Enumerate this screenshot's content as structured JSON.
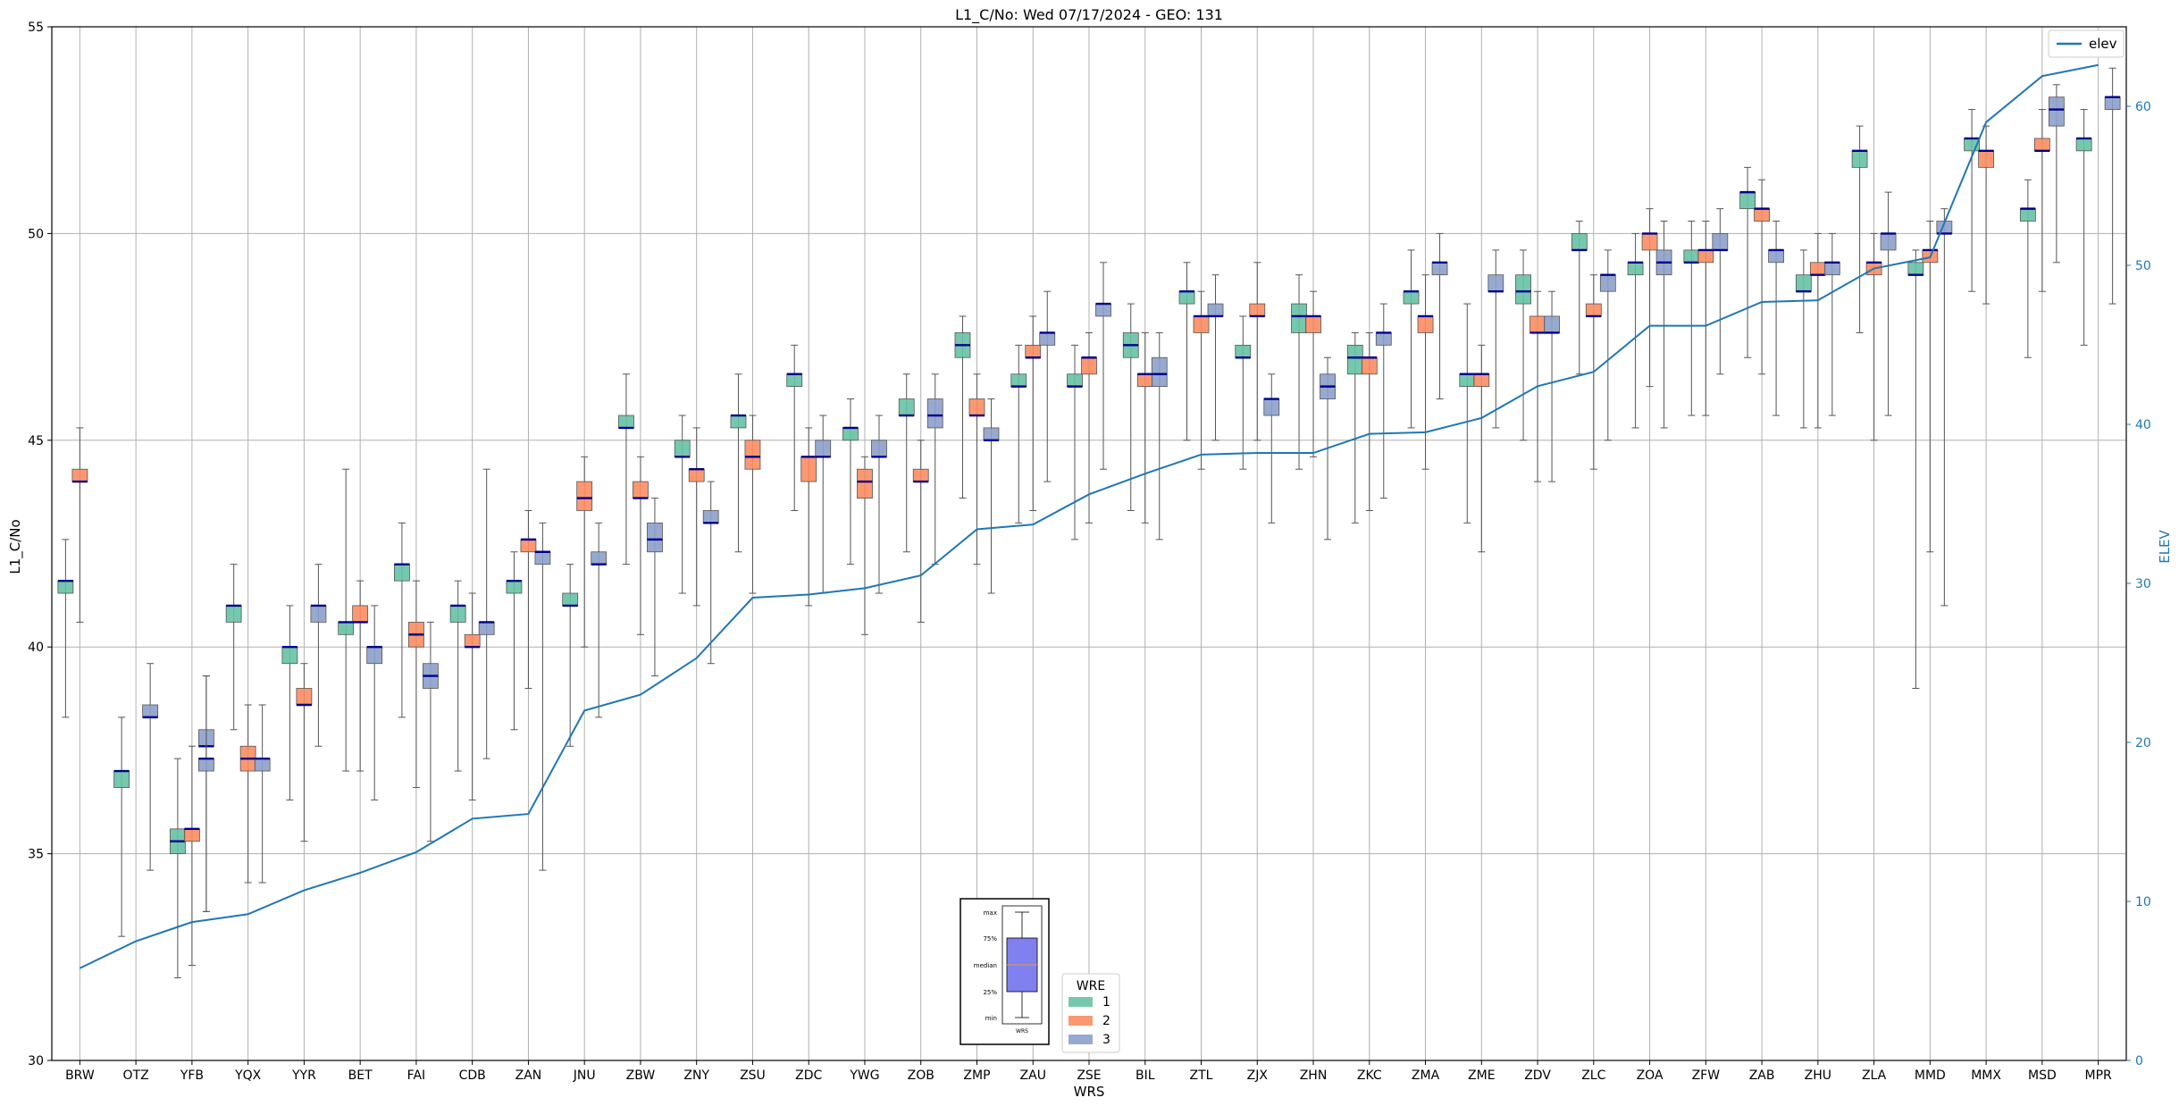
{
  "chart_data": {
    "type": "box",
    "title": "L1_C/No: Wed 07/17/2024 - GEO: 131",
    "xlabel": "WRS",
    "ylabel": "L1_C/No",
    "y2label": "ELEV",
    "ylim": [
      30,
      55
    ],
    "y2lim": [
      0,
      65
    ],
    "yticks": [
      30,
      35,
      40,
      45,
      50,
      55
    ],
    "y2ticks": [
      0,
      10,
      20,
      30,
      40,
      50,
      60
    ],
    "grid": true,
    "legend_title": "WRE",
    "legend_entries": [
      "1",
      "2",
      "3"
    ],
    "legend_placement": "bottom-center",
    "line_legend": "elev",
    "line_legend_placement": "top-right",
    "series_colors": {
      "1": "#66c2a5",
      "2": "#fc8d62",
      "3": "#8da0cb"
    },
    "line_color": "#1f77b4",
    "median_color": "#00008b",
    "inset_labels": [
      "max",
      "75%",
      "median",
      "25%",
      "min"
    ],
    "inset_xlabel": "WRS",
    "categories": [
      "BRW",
      "OTZ",
      "YFB",
      "YQX",
      "YYR",
      "BET",
      "FAI",
      "CDB",
      "ZAN",
      "JNU",
      "ZBW",
      "ZNY",
      "ZSU",
      "ZDC",
      "YWG",
      "ZOB",
      "ZMP",
      "ZAU",
      "ZSE",
      "BIL",
      "ZTL",
      "ZJX",
      "ZHN",
      "ZKC",
      "ZMA",
      "ZME",
      "ZDV",
      "ZLC",
      "ZOA",
      "ZFW",
      "ZAB",
      "ZHU",
      "ZLA",
      "MMD",
      "MMX",
      "MSD",
      "MPR"
    ],
    "elev": [
      5.8,
      7.5,
      8.7,
      9.2,
      10.7,
      11.8,
      13.1,
      15.2,
      15.5,
      22.0,
      23.0,
      25.3,
      29.1,
      29.3,
      29.7,
      30.5,
      33.4,
      33.7,
      35.6,
      36.9,
      38.1,
      38.2,
      38.2,
      39.4,
      39.5,
      40.4,
      42.4,
      43.3,
      46.2,
      46.2,
      47.7,
      47.8,
      49.8,
      50.5,
      59.0,
      61.9,
      62.6
    ],
    "boxes": [
      {
        "station": "BRW",
        "wre": "1",
        "min": 38.3,
        "q1": 41.3,
        "median": 41.6,
        "q3": 41.6,
        "max": 42.6
      },
      {
        "station": "BRW",
        "wre": "2",
        "min": 40.6,
        "q1": 44.0,
        "median": 44.0,
        "q3": 44.3,
        "max": 45.3
      },
      {
        "station": "OTZ",
        "wre": "3",
        "min": 34.6,
        "q1": 38.3,
        "median": 38.3,
        "q3": 38.6,
        "max": 39.6
      },
      {
        "station": "OTZ",
        "wre": "1",
        "min": 33.0,
        "q1": 36.6,
        "median": 37.0,
        "q3": 37.0,
        "max": 38.3
      },
      {
        "station": "YFB",
        "wre": "3",
        "min": 33.6,
        "q1": 37.6,
        "median": 37.6,
        "q3": 38.0,
        "max": 39.3
      },
      {
        "station": "YFB",
        "wre": "1",
        "min": 32.0,
        "q1": 35.0,
        "median": 35.3,
        "q3": 35.6,
        "max": 37.3
      },
      {
        "station": "YFB",
        "wre": "2",
        "min": 32.3,
        "q1": 35.3,
        "median": 35.6,
        "q3": 35.6,
        "max": 37.6
      },
      {
        "station": "YFB",
        "wre": "3",
        "min": 33.6,
        "q1": 37.0,
        "median": 37.3,
        "q3": 37.3,
        "max": 39.3
      },
      {
        "station": "YQX",
        "wre": "1",
        "min": 38.0,
        "q1": 40.6,
        "median": 41.0,
        "q3": 41.0,
        "max": 42.0
      },
      {
        "station": "YQX",
        "wre": "2",
        "min": 34.3,
        "q1": 37.0,
        "median": 37.3,
        "q3": 37.6,
        "max": 38.6
      },
      {
        "station": "YQX",
        "wre": "3",
        "min": 34.3,
        "q1": 37.0,
        "median": 37.3,
        "q3": 37.3,
        "max": 38.6
      },
      {
        "station": "YYR",
        "wre": "1",
        "min": 36.3,
        "q1": 39.6,
        "median": 40.0,
        "q3": 40.0,
        "max": 41.0
      },
      {
        "station": "YYR",
        "wre": "2",
        "min": 35.3,
        "q1": 38.6,
        "median": 38.6,
        "q3": 39.0,
        "max": 39.6
      },
      {
        "station": "YYR",
        "wre": "3",
        "min": 37.6,
        "q1": 40.6,
        "median": 41.0,
        "q3": 41.0,
        "max": 42.0
      },
      {
        "station": "BET",
        "wre": "1",
        "min": 37.0,
        "q1": 40.3,
        "median": 40.6,
        "q3": 40.6,
        "max": 44.3
      },
      {
        "station": "BET",
        "wre": "2",
        "min": 37.0,
        "q1": 40.6,
        "median": 40.6,
        "q3": 41.0,
        "max": 41.6
      },
      {
        "station": "BET",
        "wre": "3",
        "min": 36.3,
        "q1": 39.6,
        "median": 40.0,
        "q3": 40.0,
        "max": 41.0
      },
      {
        "station": "FAI",
        "wre": "1",
        "min": 38.3,
        "q1": 41.6,
        "median": 42.0,
        "q3": 42.0,
        "max": 43.0
      },
      {
        "station": "FAI",
        "wre": "2",
        "min": 36.6,
        "q1": 40.0,
        "median": 40.3,
        "q3": 40.6,
        "max": 41.6
      },
      {
        "station": "FAI",
        "wre": "3",
        "min": 35.3,
        "q1": 39.0,
        "median": 39.3,
        "q3": 39.6,
        "max": 40.6
      },
      {
        "station": "CDB",
        "wre": "1",
        "min": 37.0,
        "q1": 40.6,
        "median": 41.0,
        "q3": 41.0,
        "max": 41.6
      },
      {
        "station": "CDB",
        "wre": "2",
        "min": 36.3,
        "q1": 40.0,
        "median": 40.0,
        "q3": 40.3,
        "max": 41.3
      },
      {
        "station": "CDB",
        "wre": "3",
        "min": 37.3,
        "q1": 40.3,
        "median": 40.6,
        "q3": 40.6,
        "max": 44.3
      },
      {
        "station": "ZAN",
        "wre": "1",
        "min": 38.0,
        "q1": 41.3,
        "median": 41.6,
        "q3": 41.6,
        "max": 42.3
      },
      {
        "station": "ZAN",
        "wre": "2",
        "min": 39.0,
        "q1": 42.3,
        "median": 42.6,
        "q3": 42.6,
        "max": 43.3
      },
      {
        "station": "ZAN",
        "wre": "3",
        "min": 34.6,
        "q1": 42.0,
        "median": 42.3,
        "q3": 42.3,
        "max": 43.0
      },
      {
        "station": "JNU",
        "wre": "1",
        "min": 37.6,
        "q1": 41.0,
        "median": 41.0,
        "q3": 41.3,
        "max": 42.0
      },
      {
        "station": "JNU",
        "wre": "2",
        "min": 40.0,
        "q1": 43.3,
        "median": 43.6,
        "q3": 44.0,
        "max": 44.6
      },
      {
        "station": "JNU",
        "wre": "3",
        "min": 38.3,
        "q1": 42.0,
        "median": 42.0,
        "q3": 42.3,
        "max": 43.0
      },
      {
        "station": "ZBW",
        "wre": "1",
        "min": 42.0,
        "q1": 45.3,
        "median": 45.3,
        "q3": 45.6,
        "max": 46.6
      },
      {
        "station": "ZBW",
        "wre": "2",
        "min": 40.3,
        "q1": 43.6,
        "median": 43.6,
        "q3": 44.0,
        "max": 44.6
      },
      {
        "station": "ZBW",
        "wre": "3",
        "min": 39.3,
        "q1": 42.3,
        "median": 42.6,
        "q3": 43.0,
        "max": 43.6
      },
      {
        "station": "ZNY",
        "wre": "1",
        "min": 41.3,
        "q1": 44.6,
        "median": 44.6,
        "q3": 45.0,
        "max": 45.6
      },
      {
        "station": "ZNY",
        "wre": "2",
        "min": 41.0,
        "q1": 44.0,
        "median": 44.3,
        "q3": 44.3,
        "max": 45.3
      },
      {
        "station": "ZNY",
        "wre": "3",
        "min": 39.6,
        "q1": 43.0,
        "median": 43.0,
        "q3": 43.3,
        "max": 44.0
      },
      {
        "station": "ZSU",
        "wre": "1",
        "min": 42.3,
        "q1": 45.3,
        "median": 45.6,
        "q3": 45.6,
        "max": 46.6
      },
      {
        "station": "ZSU",
        "wre": "2",
        "min": 41.3,
        "q1": 44.3,
        "median": 44.6,
        "q3": 45.0,
        "max": 45.6
      },
      {
        "station": "ZDC",
        "wre": "1",
        "min": 43.3,
        "q1": 46.3,
        "median": 46.6,
        "q3": 46.6,
        "max": 47.3
      },
      {
        "station": "ZDC",
        "wre": "2",
        "min": 41.0,
        "q1": 44.0,
        "median": 44.6,
        "q3": 44.6,
        "max": 45.3
      },
      {
        "station": "ZDC",
        "wre": "3",
        "min": 41.3,
        "q1": 44.6,
        "median": 44.6,
        "q3": 45.0,
        "max": 45.6
      },
      {
        "station": "YWG",
        "wre": "1",
        "min": 42.0,
        "q1": 45.0,
        "median": 45.3,
        "q3": 45.3,
        "max": 46.0
      },
      {
        "station": "YWG",
        "wre": "2",
        "min": 40.3,
        "q1": 43.6,
        "median": 44.0,
        "q3": 44.3,
        "max": 44.6
      },
      {
        "station": "YWG",
        "wre": "3",
        "min": 41.3,
        "q1": 44.6,
        "median": 44.6,
        "q3": 45.0,
        "max": 45.6
      },
      {
        "station": "ZOB",
        "wre": "1",
        "min": 42.3,
        "q1": 45.6,
        "median": 45.6,
        "q3": 46.0,
        "max": 46.6
      },
      {
        "station": "ZOB",
        "wre": "2",
        "min": 40.6,
        "q1": 44.0,
        "median": 44.0,
        "q3": 44.3,
        "max": 45.0
      },
      {
        "station": "ZOB",
        "wre": "3",
        "min": 42.0,
        "q1": 45.3,
        "median": 45.6,
        "q3": 46.0,
        "max": 46.6
      },
      {
        "station": "ZMP",
        "wre": "1",
        "min": 43.6,
        "q1": 47.0,
        "median": 47.3,
        "q3": 47.6,
        "max": 48.0
      },
      {
        "station": "ZMP",
        "wre": "2",
        "min": 42.0,
        "q1": 45.6,
        "median": 45.6,
        "q3": 46.0,
        "max": 46.6
      },
      {
        "station": "ZMP",
        "wre": "3",
        "min": 41.3,
        "q1": 45.0,
        "median": 45.0,
        "q3": 45.3,
        "max": 46.0
      },
      {
        "station": "ZAU",
        "wre": "1",
        "min": 43.0,
        "q1": 46.3,
        "median": 46.3,
        "q3": 46.6,
        "max": 47.3
      },
      {
        "station": "ZAU",
        "wre": "2",
        "min": 43.3,
        "q1": 47.0,
        "median": 47.0,
        "q3": 47.3,
        "max": 48.0
      },
      {
        "station": "ZAU",
        "wre": "3",
        "min": 44.0,
        "q1": 47.3,
        "median": 47.6,
        "q3": 47.6,
        "max": 48.6
      },
      {
        "station": "ZSE",
        "wre": "1",
        "min": 42.6,
        "q1": 46.3,
        "median": 46.3,
        "q3": 46.6,
        "max": 47.3
      },
      {
        "station": "ZSE",
        "wre": "2",
        "min": 43.0,
        "q1": 46.6,
        "median": 47.0,
        "q3": 47.0,
        "max": 47.6
      },
      {
        "station": "ZSE",
        "wre": "3",
        "min": 44.3,
        "q1": 48.0,
        "median": 48.3,
        "q3": 48.3,
        "max": 49.3
      },
      {
        "station": "BIL",
        "wre": "1",
        "min": 43.3,
        "q1": 47.0,
        "median": 47.3,
        "q3": 47.6,
        "max": 48.3
      },
      {
        "station": "BIL",
        "wre": "2",
        "min": 43.0,
        "q1": 46.3,
        "median": 46.6,
        "q3": 46.6,
        "max": 47.6
      },
      {
        "station": "BIL",
        "wre": "3",
        "min": 42.6,
        "q1": 46.3,
        "median": 46.6,
        "q3": 47.0,
        "max": 47.6
      },
      {
        "station": "ZTL",
        "wre": "1",
        "min": 45.0,
        "q1": 48.3,
        "median": 48.6,
        "q3": 48.6,
        "max": 49.3
      },
      {
        "station": "ZTL",
        "wre": "2",
        "min": 44.3,
        "q1": 47.6,
        "median": 48.0,
        "q3": 48.0,
        "max": 48.6
      },
      {
        "station": "ZTL",
        "wre": "3",
        "min": 45.0,
        "q1": 48.0,
        "median": 48.0,
        "q3": 48.3,
        "max": 49.0
      },
      {
        "station": "ZJX",
        "wre": "1",
        "min": 44.3,
        "q1": 47.0,
        "median": 47.0,
        "q3": 47.3,
        "max": 48.0
      },
      {
        "station": "ZJX",
        "wre": "2",
        "min": 45.0,
        "q1": 48.0,
        "median": 48.0,
        "q3": 48.3,
        "max": 49.3
      },
      {
        "station": "ZJX",
        "wre": "3",
        "min": 43.0,
        "q1": 45.6,
        "median": 46.0,
        "q3": 46.0,
        "max": 46.6
      },
      {
        "station": "ZHN",
        "wre": "1",
        "min": 44.3,
        "q1": 47.6,
        "median": 48.0,
        "q3": 48.3,
        "max": 49.0
      },
      {
        "station": "ZHN",
        "wre": "2",
        "min": 44.6,
        "q1": 47.6,
        "median": 48.0,
        "q3": 48.0,
        "max": 48.6
      },
      {
        "station": "ZHN",
        "wre": "3",
        "min": 42.6,
        "q1": 46.0,
        "median": 46.3,
        "q3": 46.6,
        "max": 47.0
      },
      {
        "station": "ZKC",
        "wre": "1",
        "min": 43.0,
        "q1": 46.6,
        "median": 47.0,
        "q3": 47.3,
        "max": 47.6
      },
      {
        "station": "ZKC",
        "wre": "2",
        "min": 43.3,
        "q1": 46.6,
        "median": 47.0,
        "q3": 47.0,
        "max": 47.6
      },
      {
        "station": "ZKC",
        "wre": "3",
        "min": 43.6,
        "q1": 47.3,
        "median": 47.6,
        "q3": 47.6,
        "max": 48.3
      },
      {
        "station": "ZMA",
        "wre": "1",
        "min": 45.3,
        "q1": 48.3,
        "median": 48.6,
        "q3": 48.6,
        "max": 49.6
      },
      {
        "station": "ZMA",
        "wre": "2",
        "min": 44.3,
        "q1": 47.6,
        "median": 48.0,
        "q3": 48.0,
        "max": 49.0
      },
      {
        "station": "ZMA",
        "wre": "3",
        "min": 46.0,
        "q1": 49.0,
        "median": 49.3,
        "q3": 49.3,
        "max": 50.0
      },
      {
        "station": "ZME",
        "wre": "1",
        "min": 43.0,
        "q1": 46.3,
        "median": 46.6,
        "q3": 46.6,
        "max": 48.3
      },
      {
        "station": "ZME",
        "wre": "2",
        "min": 42.3,
        "q1": 46.3,
        "median": 46.6,
        "q3": 46.6,
        "max": 47.3
      },
      {
        "station": "ZME",
        "wre": "3",
        "min": 45.3,
        "q1": 48.6,
        "median": 48.6,
        "q3": 49.0,
        "max": 49.6
      },
      {
        "station": "ZDV",
        "wre": "1",
        "min": 45.0,
        "q1": 48.3,
        "median": 48.6,
        "q3": 49.0,
        "max": 49.6
      },
      {
        "station": "ZDV",
        "wre": "2",
        "min": 44.0,
        "q1": 47.6,
        "median": 47.6,
        "q3": 48.0,
        "max": 48.6
      },
      {
        "station": "ZDV",
        "wre": "3",
        "min": 44.0,
        "q1": 47.6,
        "median": 47.6,
        "q3": 48.0,
        "max": 48.6
      },
      {
        "station": "ZLC",
        "wre": "1",
        "min": 46.6,
        "q1": 49.6,
        "median": 49.6,
        "q3": 50.0,
        "max": 50.3
      },
      {
        "station": "ZLC",
        "wre": "2",
        "min": 44.3,
        "q1": 48.0,
        "median": 48.0,
        "q3": 48.3,
        "max": 49.0
      },
      {
        "station": "ZLC",
        "wre": "3",
        "min": 45.0,
        "q1": 48.6,
        "median": 49.0,
        "q3": 49.0,
        "max": 49.6
      },
      {
        "station": "ZOA",
        "wre": "1",
        "min": 45.3,
        "q1": 49.0,
        "median": 49.3,
        "q3": 49.3,
        "max": 50.0
      },
      {
        "station": "ZOA",
        "wre": "2",
        "min": 46.3,
        "q1": 49.6,
        "median": 50.0,
        "q3": 50.0,
        "max": 50.6
      },
      {
        "station": "ZOA",
        "wre": "3",
        "min": 45.3,
        "q1": 49.0,
        "median": 49.3,
        "q3": 49.6,
        "max": 50.3
      },
      {
        "station": "ZFW",
        "wre": "1",
        "min": 45.6,
        "q1": 49.3,
        "median": 49.3,
        "q3": 49.6,
        "max": 50.3
      },
      {
        "station": "ZFW",
        "wre": "2",
        "min": 45.6,
        "q1": 49.3,
        "median": 49.6,
        "q3": 49.6,
        "max": 50.3
      },
      {
        "station": "ZFW",
        "wre": "3",
        "min": 46.6,
        "q1": 49.6,
        "median": 49.6,
        "q3": 50.0,
        "max": 50.6
      },
      {
        "station": "ZAB",
        "wre": "1",
        "min": 47.0,
        "q1": 50.6,
        "median": 51.0,
        "q3": 51.0,
        "max": 51.6
      },
      {
        "station": "ZAB",
        "wre": "2",
        "min": 46.6,
        "q1": 50.3,
        "median": 50.6,
        "q3": 50.6,
        "max": 51.3
      },
      {
        "station": "ZAB",
        "wre": "3",
        "min": 45.6,
        "q1": 49.3,
        "median": 49.6,
        "q3": 49.6,
        "max": 50.3
      },
      {
        "station": "ZHU",
        "wre": "1",
        "min": 45.3,
        "q1": 48.6,
        "median": 48.6,
        "q3": 49.0,
        "max": 49.6
      },
      {
        "station": "ZHU",
        "wre": "2",
        "min": 45.3,
        "q1": 49.0,
        "median": 49.0,
        "q3": 49.3,
        "max": 50.0
      },
      {
        "station": "ZHU",
        "wre": "3",
        "min": 45.6,
        "q1": 49.0,
        "median": 49.3,
        "q3": 49.3,
        "max": 50.0
      },
      {
        "station": "ZLA",
        "wre": "1",
        "min": 47.6,
        "q1": 51.6,
        "median": 52.0,
        "q3": 52.0,
        "max": 52.6
      },
      {
        "station": "ZLA",
        "wre": "2",
        "min": 45.0,
        "q1": 49.0,
        "median": 49.3,
        "q3": 49.3,
        "max": 50.0
      },
      {
        "station": "ZLA",
        "wre": "3",
        "min": 45.6,
        "q1": 49.6,
        "median": 50.0,
        "q3": 50.0,
        "max": 51.0
      },
      {
        "station": "MMD",
        "wre": "1",
        "min": 39.0,
        "q1": 49.0,
        "median": 49.0,
        "q3": 49.3,
        "max": 49.6
      },
      {
        "station": "MMD",
        "wre": "2",
        "min": 42.3,
        "q1": 49.3,
        "median": 49.6,
        "q3": 49.6,
        "max": 50.3
      },
      {
        "station": "MMD",
        "wre": "3",
        "min": 41.0,
        "q1": 50.0,
        "median": 50.0,
        "q3": 50.3,
        "max": 50.6
      },
      {
        "station": "MMX",
        "wre": "1",
        "min": 48.6,
        "q1": 52.0,
        "median": 52.3,
        "q3": 52.3,
        "max": 53.0
      },
      {
        "station": "MMX",
        "wre": "2",
        "min": 48.3,
        "q1": 51.6,
        "median": 52.0,
        "q3": 52.0,
        "max": 52.6
      },
      {
        "station": "MSD",
        "wre": "1",
        "min": 47.0,
        "q1": 50.3,
        "median": 50.6,
        "q3": 50.6,
        "max": 51.3
      },
      {
        "station": "MSD",
        "wre": "2",
        "min": 48.6,
        "q1": 52.0,
        "median": 52.0,
        "q3": 52.3,
        "max": 53.0
      },
      {
        "station": "MSD",
        "wre": "3",
        "min": 49.3,
        "q1": 52.6,
        "median": 53.0,
        "q3": 53.3,
        "max": 53.6
      },
      {
        "station": "MPR",
        "wre": "1",
        "min": 47.3,
        "q1": 52.0,
        "median": 52.3,
        "q3": 52.3,
        "max": 53.0
      },
      {
        "station": "MPR",
        "wre": "3",
        "min": 48.3,
        "q1": 53.0,
        "median": 53.3,
        "q3": 53.3,
        "max": 54.0
      }
    ]
  }
}
